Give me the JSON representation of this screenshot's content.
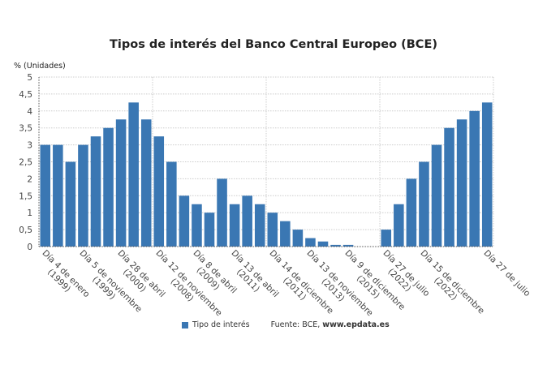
{
  "chart_data": {
    "type": "bar",
    "title": "Tipos de interés del Banco Central Europeo (BCE)",
    "ylabel": "% (Unidades)",
    "xlabel": "",
    "ylim": [
      0,
      5
    ],
    "yticks": [
      "0",
      "0,5",
      "1",
      "1,5",
      "2",
      "2,5",
      "3",
      "3,5",
      "4",
      "4,5",
      "5"
    ],
    "grid": true,
    "legend_position": "bottom",
    "color": "#3a77b3",
    "categories": [
      [
        "Día 4 de enero",
        "(1999)"
      ],
      [
        "",
        ""
      ],
      [
        "",
        ""
      ],
      [
        "Día 5 de noviembre",
        "(1999)"
      ],
      [
        "",
        ""
      ],
      [
        "",
        ""
      ],
      [
        "Día 28 de abril",
        "(2000)"
      ],
      [
        "",
        ""
      ],
      [
        "",
        ""
      ],
      [
        "Día 12 de noviembre",
        "(2008)"
      ],
      [
        "",
        ""
      ],
      [
        "",
        ""
      ],
      [
        "Día 8 de abril",
        "(2009)"
      ],
      [
        "",
        ""
      ],
      [
        "",
        ""
      ],
      [
        "Día 13 de abril",
        "(2011)"
      ],
      [
        "",
        ""
      ],
      [
        "",
        ""
      ],
      [
        "Día 14 de diciembre",
        "(2011)"
      ],
      [
        "",
        ""
      ],
      [
        "",
        ""
      ],
      [
        "Día 13 de noviembre",
        "(2013)"
      ],
      [
        "",
        ""
      ],
      [
        "",
        ""
      ],
      [
        "Día 9 de diciembre",
        "(2015)"
      ],
      [
        "",
        ""
      ],
      [
        "",
        ""
      ],
      [
        "Día 27 de julio",
        "(2022)"
      ],
      [
        "",
        ""
      ],
      [
        "",
        ""
      ],
      [
        "Día 15 de diciembre",
        "(2022)"
      ],
      [
        "",
        ""
      ],
      [
        "",
        ""
      ],
      [
        "",
        ""
      ],
      [
        "",
        ""
      ],
      [
        "Día 27 de julio",
        ""
      ]
    ],
    "series": [
      {
        "name": "Tipo de interés",
        "values": [
          3,
          3,
          2.5,
          3,
          3.25,
          3.5,
          3.75,
          4.25,
          3.75,
          3.25,
          2.5,
          1.5,
          1.25,
          1,
          2,
          1.25,
          1.5,
          1.25,
          1,
          0.75,
          0.5,
          0.25,
          0.15,
          0.05,
          0.05,
          0,
          0,
          0.5,
          1.25,
          2,
          2.5,
          3,
          3.5,
          3.75,
          4,
          4.25
        ]
      }
    ]
  },
  "legend": {
    "label": "Tipo de interés"
  },
  "source": {
    "prefix": "Fuente: BCE, ",
    "site": "www.epdata.es"
  }
}
